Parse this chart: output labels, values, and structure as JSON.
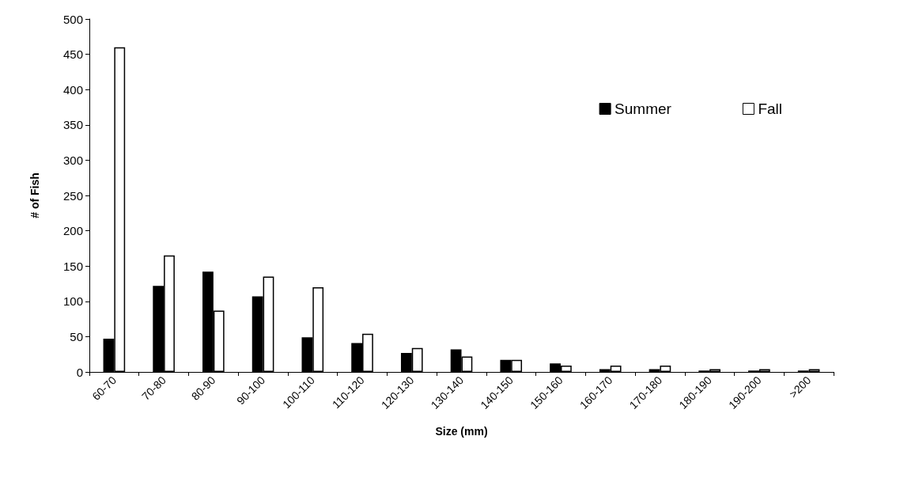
{
  "chart_data": {
    "type": "bar",
    "xlabel": "Size (mm)",
    "ylabel": "# of Fish",
    "categories": [
      "60-70",
      "70-80",
      "80-90",
      "90-100",
      "100-110",
      "110-120",
      "120-130",
      "130-140",
      "140-150",
      "150-160",
      "160-170",
      "170-180",
      "180-190",
      "190-200",
      ">200"
    ],
    "series": [
      {
        "name": "Summer",
        "color": "#000000",
        "values": [
          47,
          122,
          142,
          107,
          49,
          41,
          27,
          32,
          17,
          12,
          4,
          4,
          2,
          2,
          2
        ]
      },
      {
        "name": "Fall",
        "color": "#ffffff",
        "values": [
          460,
          165,
          87,
          135,
          120,
          54,
          34,
          22,
          17,
          9,
          9,
          9,
          4,
          4,
          4
        ]
      }
    ],
    "ylim": [
      0,
      500
    ],
    "yticks": [
      0,
      50,
      100,
      150,
      200,
      250,
      300,
      350,
      400,
      450,
      500
    ],
    "grid": false,
    "legend": "top right"
  }
}
